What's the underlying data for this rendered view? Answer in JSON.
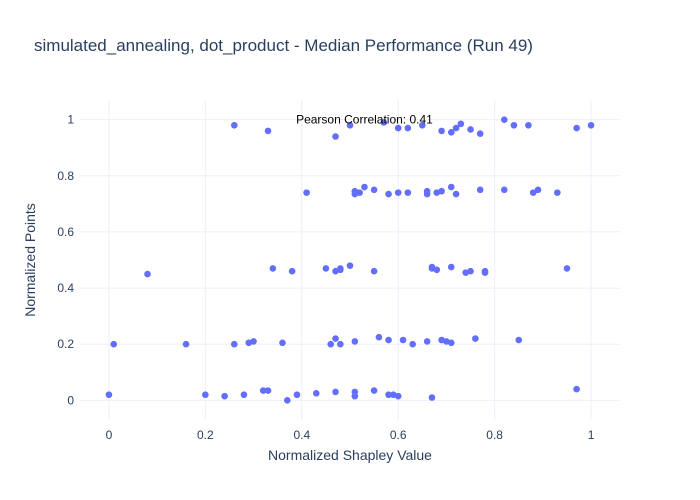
{
  "chart_data": {
    "type": "scatter",
    "title": "simulated_annealing, dot_product - Median Performance (Run 49)",
    "xlabel": "Normalized Shapley Value",
    "ylabel": "Normalized Points",
    "xlim": [
      -0.06,
      1.06
    ],
    "ylim": [
      -0.07,
      1.07
    ],
    "xticks": [
      0,
      0.2,
      0.4,
      0.6,
      0.8,
      1
    ],
    "xtick_labels": [
      "0",
      "0.2",
      "0.4",
      "0.6",
      "0.8",
      "1"
    ],
    "yticks": [
      0,
      0.2,
      0.4,
      0.6,
      0.8,
      1
    ],
    "ytick_labels": [
      "0",
      "0.2",
      "0.4",
      "0.6",
      "0.8",
      "1"
    ],
    "grid": true,
    "marker_color": "#636efa",
    "annotation": {
      "text": "Pearson Correlation: 0.41",
      "x": 0.53,
      "y": 0.98
    },
    "series": [
      {
        "points": [
          [
            0.0,
            0.02
          ],
          [
            0.01,
            0.2
          ],
          [
            0.08,
            0.45
          ],
          [
            0.16,
            0.2
          ],
          [
            0.2,
            0.02
          ],
          [
            0.24,
            0.015
          ],
          [
            0.26,
            0.98
          ],
          [
            0.26,
            0.2
          ],
          [
            0.28,
            0.02
          ],
          [
            0.3,
            0.21
          ],
          [
            0.29,
            0.205
          ],
          [
            0.32,
            0.035
          ],
          [
            0.33,
            0.035
          ],
          [
            0.33,
            0.96
          ],
          [
            0.34,
            0.47
          ],
          [
            0.36,
            0.205
          ],
          [
            0.37,
            0.0
          ],
          [
            0.38,
            0.46
          ],
          [
            0.39,
            0.02
          ],
          [
            0.41,
            0.74
          ],
          [
            0.43,
            0.025
          ],
          [
            0.45,
            0.47
          ],
          [
            0.46,
            0.2
          ],
          [
            0.47,
            0.03
          ],
          [
            0.47,
            0.46
          ],
          [
            0.47,
            0.22
          ],
          [
            0.47,
            0.94
          ],
          [
            0.48,
            0.465
          ],
          [
            0.48,
            0.2
          ],
          [
            0.48,
            0.47
          ],
          [
            0.5,
            0.98
          ],
          [
            0.5,
            0.48
          ],
          [
            0.51,
            0.03
          ],
          [
            0.51,
            0.21
          ],
          [
            0.51,
            0.015
          ],
          [
            0.51,
            0.745
          ],
          [
            0.51,
            0.735
          ],
          [
            0.52,
            0.74
          ],
          [
            0.53,
            0.76
          ],
          [
            0.55,
            0.75
          ],
          [
            0.55,
            0.035
          ],
          [
            0.55,
            0.46
          ],
          [
            0.56,
            0.225
          ],
          [
            0.57,
            0.99
          ],
          [
            0.58,
            0.215
          ],
          [
            0.58,
            0.02
          ],
          [
            0.58,
            0.735
          ],
          [
            0.59,
            0.02
          ],
          [
            0.6,
            0.015
          ],
          [
            0.6,
            0.74
          ],
          [
            0.6,
            0.97
          ],
          [
            0.61,
            0.215
          ],
          [
            0.62,
            0.97
          ],
          [
            0.62,
            0.74
          ],
          [
            0.63,
            0.2
          ],
          [
            0.65,
            0.98
          ],
          [
            0.66,
            0.745
          ],
          [
            0.66,
            0.735
          ],
          [
            0.66,
            0.21
          ],
          [
            0.67,
            0.47
          ],
          [
            0.67,
            0.01
          ],
          [
            0.67,
            0.475
          ],
          [
            0.68,
            0.465
          ],
          [
            0.68,
            0.74
          ],
          [
            0.69,
            0.96
          ],
          [
            0.69,
            0.745
          ],
          [
            0.69,
            0.215
          ],
          [
            0.7,
            0.21
          ],
          [
            0.71,
            0.76
          ],
          [
            0.71,
            0.205
          ],
          [
            0.71,
            0.955
          ],
          [
            0.71,
            0.475
          ],
          [
            0.72,
            0.735
          ],
          [
            0.72,
            0.97
          ],
          [
            0.73,
            0.985
          ],
          [
            0.74,
            0.455
          ],
          [
            0.75,
            0.46
          ],
          [
            0.75,
            0.965
          ],
          [
            0.76,
            0.22
          ],
          [
            0.77,
            0.95
          ],
          [
            0.77,
            0.75
          ],
          [
            0.78,
            0.455
          ],
          [
            0.78,
            0.46
          ],
          [
            0.82,
            1.0
          ],
          [
            0.82,
            0.75
          ],
          [
            0.84,
            0.98
          ],
          [
            0.85,
            0.215
          ],
          [
            0.87,
            0.98
          ],
          [
            0.88,
            0.74
          ],
          [
            0.89,
            0.75
          ],
          [
            0.93,
            0.74
          ],
          [
            0.95,
            0.47
          ],
          [
            0.97,
            0.04
          ],
          [
            0.97,
            0.97
          ],
          [
            1.0,
            0.98
          ]
        ]
      }
    ]
  }
}
